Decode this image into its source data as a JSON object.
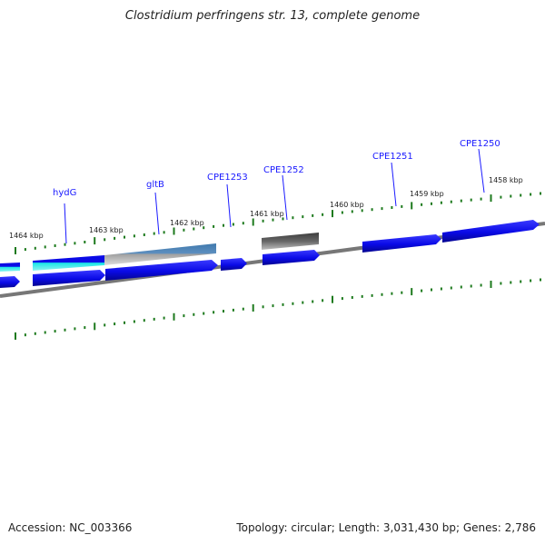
{
  "title": "Clostridium perfringens str. 13, complete genome",
  "footer": {
    "accession": "Accession: NC_003366",
    "summary": "Topology: circular; Length: 3,031,430 bp; Genes: 2,786"
  },
  "scale_labels": [
    "1464 kbp",
    "1463 kbp",
    "1462 kbp",
    "1461 kbp",
    "1460 kbp",
    "1459 kbp",
    "1458 kbp"
  ],
  "gene_labels": [
    "hydG",
    "gltB",
    "CPE1253",
    "CPE1252",
    "CPE1251",
    "CPE1250"
  ],
  "colors": {
    "gene_forward": "#0a0ae6",
    "highlight_cyan": "#19e6e6",
    "highlight_steel": "#3f79ad",
    "pseudo_gray": "#555555",
    "backbone": "#777777",
    "tick": "#1d7a1d",
    "label": "#1a1aff"
  }
}
